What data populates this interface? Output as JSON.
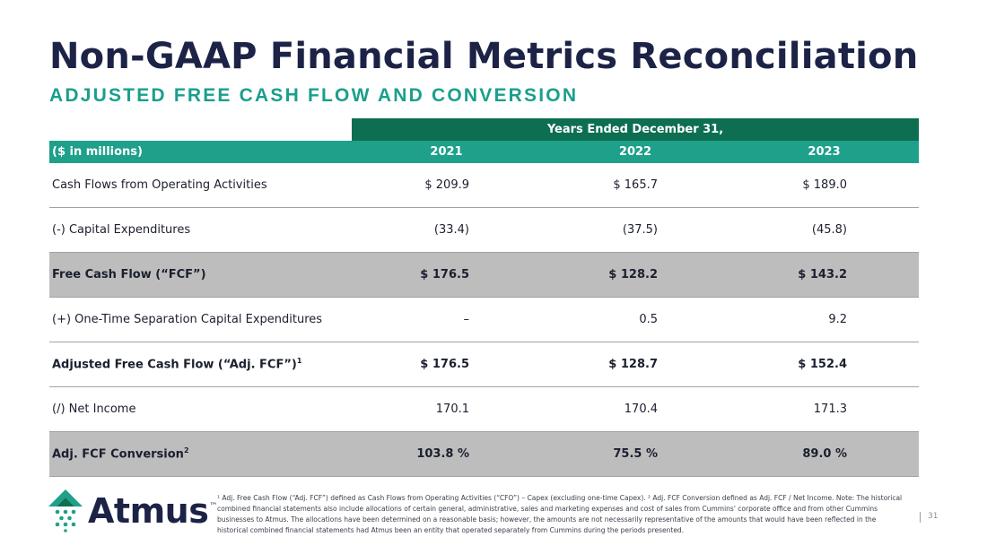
{
  "slide": {
    "title": "Non-GAAP Financial Metrics Reconciliation",
    "subtitle": "ADJUSTED FREE CASH FLOW AND CONVERSION",
    "page_number": "31"
  },
  "table": {
    "group_header": "Years Ended December 31,",
    "label_header": "($ in millions)",
    "years": [
      "2021",
      "2022",
      "2023"
    ],
    "rows": [
      {
        "label": "Cash Flows from Operating Activities",
        "sup": "",
        "values": [
          "$ 209.9",
          "$ 165.7",
          "$ 189.0"
        ]
      },
      {
        "label": "(-) Capital Expenditures",
        "sup": "",
        "values": [
          "(33.4)",
          "(37.5)",
          "(45.8)"
        ]
      },
      {
        "label": "Free Cash Flow (“FCF”)",
        "sup": "",
        "values": [
          "$ 176.5",
          "$ 128.2",
          "$ 143.2"
        ]
      },
      {
        "label": "(+) One-Time Separation Capital Expenditures",
        "sup": "",
        "values": [
          "–",
          "0.5",
          "9.2"
        ]
      },
      {
        "label": "Adjusted Free Cash Flow (“Adj. FCF”)",
        "sup": "1",
        "values": [
          "$ 176.5",
          "$ 128.7",
          "$ 152.4"
        ]
      },
      {
        "label": "(/) Net Income",
        "sup": "",
        "values": [
          "170.1",
          "170.4",
          "171.3"
        ]
      },
      {
        "label": "Adj. FCF Conversion",
        "sup": "2",
        "values": [
          "103.8 %",
          "75.5 %",
          "89.0 %"
        ]
      }
    ]
  },
  "footer": {
    "logo_text": "Atmus",
    "logo_tm": "™",
    "footnote": "¹ Adj. Free Cash Flow (“Adj. FCF”) defined as Cash Flows from Operating Activities (“CFO”) – Capex (excluding one-time Capex). ² Adj. FCF Conversion defined as Adj. FCF / Net Income. Note: The historical combined financial statements also include allocations of certain general, administrative, sales and marketing expenses and cost of sales from Cummins' corporate office and from other Cummins businesses to Atmus. The allocations have been determined on a reasonable basis; however, the amounts are not necessarily representative of the amounts that would have been reflected in the historical combined financial statements had Atmus been an entity that operated separately from Cummins during the periods presented."
  },
  "colors": {
    "title_navy": "#1c2346",
    "subtitle_teal": "#1a9f8c",
    "header_dark_green": "#0d6e52",
    "header_teal": "#1ea08b",
    "row_shade_gray": "#bdbdbd"
  }
}
